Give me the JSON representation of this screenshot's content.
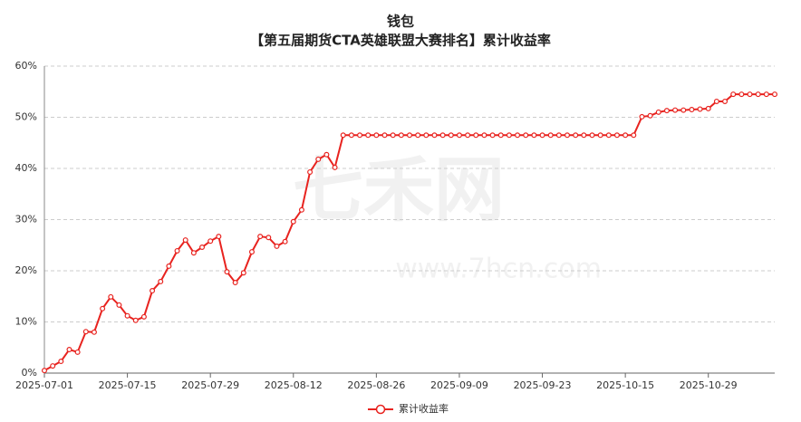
{
  "chart_data": {
    "type": "line",
    "title": "钱包",
    "subtitle": "【第五届期货CTA英雄联盟大赛排名】累计收益率",
    "watermark": "七禾网",
    "watermark_url": "www.7hcn.com",
    "categories": [
      "2025-07-01",
      null,
      null,
      null,
      null,
      null,
      null,
      null,
      null,
      null,
      "2025-07-15",
      null,
      null,
      null,
      null,
      null,
      null,
      null,
      null,
      null,
      "2025-07-29",
      null,
      null,
      null,
      null,
      null,
      null,
      null,
      null,
      null,
      "2025-08-12",
      null,
      null,
      null,
      null,
      null,
      null,
      null,
      null,
      null,
      "2025-08-26",
      null,
      null,
      null,
      null,
      null,
      null,
      null,
      null,
      null,
      "2025-09-09",
      null,
      null,
      null,
      null,
      null,
      null,
      null,
      null,
      null,
      "2025-09-23",
      null,
      null,
      null,
      null,
      null,
      null,
      null,
      null,
      null,
      "2025-10-15",
      null,
      null,
      null,
      null,
      null,
      null,
      null,
      null,
      null,
      "2025-10-29",
      null,
      null,
      null,
      null,
      null,
      null,
      null,
      null
    ],
    "series": [
      {
        "name": "累计收益率",
        "color": "#e8231f",
        "values": [
          0.5,
          1.4,
          2.3,
          4.6,
          4.1,
          8.1,
          8.0,
          12.6,
          14.9,
          13.3,
          11.2,
          10.3,
          11.0,
          16.1,
          17.9,
          20.9,
          23.9,
          26.0,
          23.5,
          24.6,
          25.8,
          26.7,
          19.8,
          17.7,
          19.6,
          23.7,
          26.7,
          26.5,
          24.8,
          25.7,
          29.6,
          31.9,
          39.3,
          41.8,
          42.7,
          40.2,
          46.5,
          46.5,
          46.5,
          46.5,
          46.5,
          46.5,
          46.5,
          46.5,
          46.5,
          46.5,
          46.5,
          46.5,
          46.5,
          46.5,
          46.5,
          46.5,
          46.5,
          46.5,
          46.5,
          46.5,
          46.5,
          46.5,
          46.5,
          46.5,
          46.5,
          46.5,
          46.5,
          46.5,
          46.5,
          46.5,
          46.5,
          46.5,
          46.5,
          46.5,
          46.5,
          46.5,
          50.1,
          50.3,
          51.0,
          51.3,
          51.4,
          51.4,
          51.5,
          51.6,
          51.7,
          53.1,
          53.1,
          54.5,
          54.5,
          54.5,
          54.5,
          54.5,
          54.5
        ]
      }
    ],
    "ylim": [
      0,
      60
    ],
    "yticks": [
      {
        "value": 0,
        "label": "0%"
      },
      {
        "value": 10,
        "label": "10%"
      },
      {
        "value": 20,
        "label": "20%"
      },
      {
        "value": 30,
        "label": "30%"
      },
      {
        "value": 40,
        "label": "40%"
      },
      {
        "value": 50,
        "label": "50%"
      },
      {
        "value": 60,
        "label": "60%"
      }
    ],
    "grid": true,
    "legend": "bottom"
  }
}
